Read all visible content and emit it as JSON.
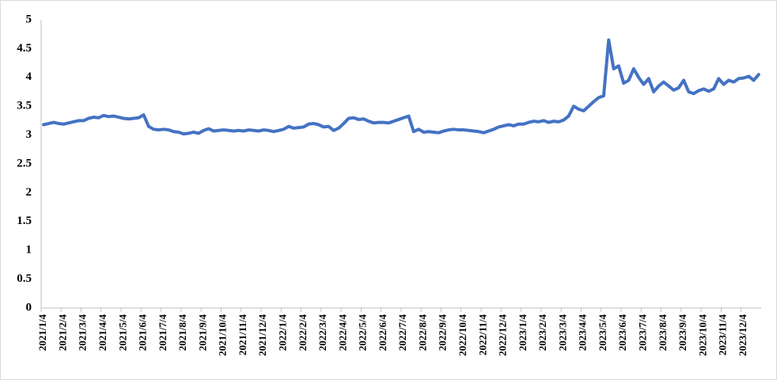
{
  "chart_data": {
    "type": "line",
    "color": "#4472c4",
    "categories": [
      "2021/1/4",
      null,
      null,
      null,
      "2021/2/4",
      null,
      null,
      null,
      "2021/3/4",
      null,
      null,
      null,
      "2021/4/4",
      null,
      null,
      null,
      "2021/5/4",
      null,
      null,
      null,
      "2021/6/4",
      null,
      null,
      null,
      "2021/7/4",
      null,
      null,
      null,
      "2021/8/4",
      null,
      null,
      null,
      "2021/9/4",
      null,
      null,
      null,
      "2021/10/4",
      null,
      null,
      null,
      "2021/11/4",
      null,
      null,
      null,
      "2021/12/4",
      null,
      null,
      null,
      "2022/1/4",
      null,
      null,
      null,
      "2022/2/4",
      null,
      null,
      null,
      "2022/3/4",
      null,
      null,
      null,
      "2022/4/4",
      null,
      null,
      null,
      "2022/5/4",
      null,
      null,
      null,
      "2022/6/4",
      null,
      null,
      null,
      "2022/7/4",
      null,
      null,
      null,
      "2022/8/4",
      null,
      null,
      null,
      "2022/9/4",
      null,
      null,
      null,
      "2022/10/4",
      null,
      null,
      null,
      "2022/11/4",
      null,
      null,
      null,
      "2022/12/4",
      null,
      null,
      null,
      "2023/1/4",
      null,
      null,
      null,
      "2023/2/4",
      null,
      null,
      null,
      "2023/3/4",
      null,
      null,
      null,
      "2023/4/4",
      null,
      null,
      null,
      "2023/5/4",
      null,
      null,
      null,
      "2023/6/4",
      null,
      null,
      null,
      "2023/7/4",
      null,
      null,
      null,
      "2023/8/4",
      null,
      null,
      null,
      "2023/9/4",
      null,
      null,
      null,
      "2023/10/4",
      null,
      null,
      null,
      "2023/11/4",
      null,
      null,
      null,
      "2023/12/4",
      null,
      null,
      null
    ],
    "values": [
      3.18,
      3.2,
      3.22,
      3.2,
      3.19,
      3.21,
      3.23,
      3.25,
      3.25,
      3.29,
      3.31,
      3.3,
      3.34,
      3.32,
      3.33,
      3.31,
      3.29,
      3.28,
      3.29,
      3.3,
      3.35,
      3.15,
      3.1,
      3.09,
      3.1,
      3.09,
      3.06,
      3.05,
      3.02,
      3.03,
      3.05,
      3.03,
      3.08,
      3.11,
      3.07,
      3.08,
      3.09,
      3.08,
      3.07,
      3.08,
      3.07,
      3.09,
      3.08,
      3.07,
      3.09,
      3.08,
      3.06,
      3.08,
      3.1,
      3.15,
      3.12,
      3.13,
      3.14,
      3.19,
      3.2,
      3.18,
      3.14,
      3.15,
      3.08,
      3.12,
      3.2,
      3.29,
      3.3,
      3.27,
      3.28,
      3.24,
      3.21,
      3.22,
      3.22,
      3.21,
      3.24,
      3.27,
      3.3,
      3.33,
      3.06,
      3.1,
      3.05,
      3.06,
      3.05,
      3.04,
      3.07,
      3.09,
      3.1,
      3.09,
      3.09,
      3.08,
      3.07,
      3.06,
      3.04,
      3.07,
      3.1,
      3.14,
      3.16,
      3.18,
      3.16,
      3.19,
      3.19,
      3.22,
      3.24,
      3.23,
      3.25,
      3.22,
      3.24,
      3.23,
      3.26,
      3.33,
      3.5,
      3.45,
      3.42,
      3.5,
      3.58,
      3.65,
      3.68,
      4.65,
      4.15,
      4.2,
      3.9,
      3.95,
      4.15,
      4.0,
      3.88,
      3.98,
      3.75,
      3.85,
      3.92,
      3.85,
      3.78,
      3.82,
      3.95,
      3.75,
      3.72,
      3.77,
      3.8,
      3.76,
      3.8,
      3.98,
      3.88,
      3.95,
      3.92,
      3.98,
      3.99,
      4.02,
      3.95,
      4.05
    ],
    "ylim": [
      0,
      5
    ],
    "yticks": [
      0,
      0.5,
      1,
      1.5,
      2,
      2.5,
      3,
      3.5,
      4,
      4.5,
      5
    ]
  }
}
